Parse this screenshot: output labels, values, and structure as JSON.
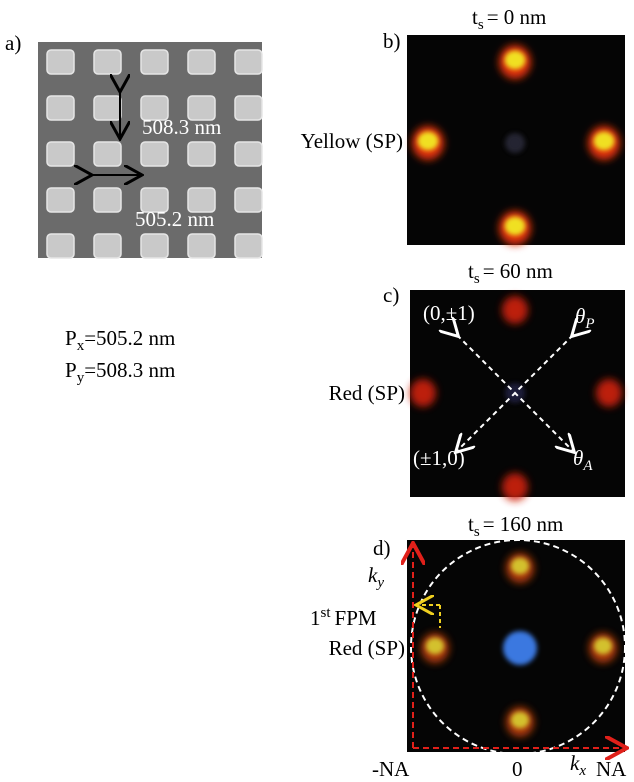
{
  "panel_a": {
    "label": "a)",
    "period_y_annotation": "508.3 nm",
    "period_x_annotation": "505.2 nm",
    "px": {
      "symbol": "P",
      "sub": "x",
      "text": "=505.2 nm"
    },
    "py": {
      "symbol": "P",
      "sub": "y",
      "text": "=508.3 nm"
    }
  },
  "panel_b": {
    "label": "b)",
    "title": {
      "symbol": "t",
      "sub": "s",
      "text": "= 0 nm"
    },
    "side_label": "Yellow (SP)"
  },
  "panel_c": {
    "label": "c)",
    "title": {
      "symbol": "t",
      "sub": "s",
      "text": "= 60 nm"
    },
    "side_label": "Red (SP)",
    "order_top": "(0,±1)",
    "order_bottom": "(±1,0)",
    "theta_p": {
      "symbol": "θ",
      "sub": "P"
    },
    "theta_a": {
      "symbol": "θ",
      "sub": "A"
    }
  },
  "panel_d": {
    "label": "d)",
    "title": {
      "symbol": "t",
      "sub": "s",
      "text": "= 160 nm"
    },
    "ky": {
      "symbol": "k",
      "sub": "y"
    },
    "fpm": {
      "symbol": "1",
      "sup": "st",
      "text": "FPM"
    },
    "side_label": "Red (SP)",
    "axis_labels": {
      "neg_na": "-NA",
      "zero": "0",
      "kx": {
        "symbol": "k",
        "sub": "x"
      },
      "na": "NA"
    }
  }
}
